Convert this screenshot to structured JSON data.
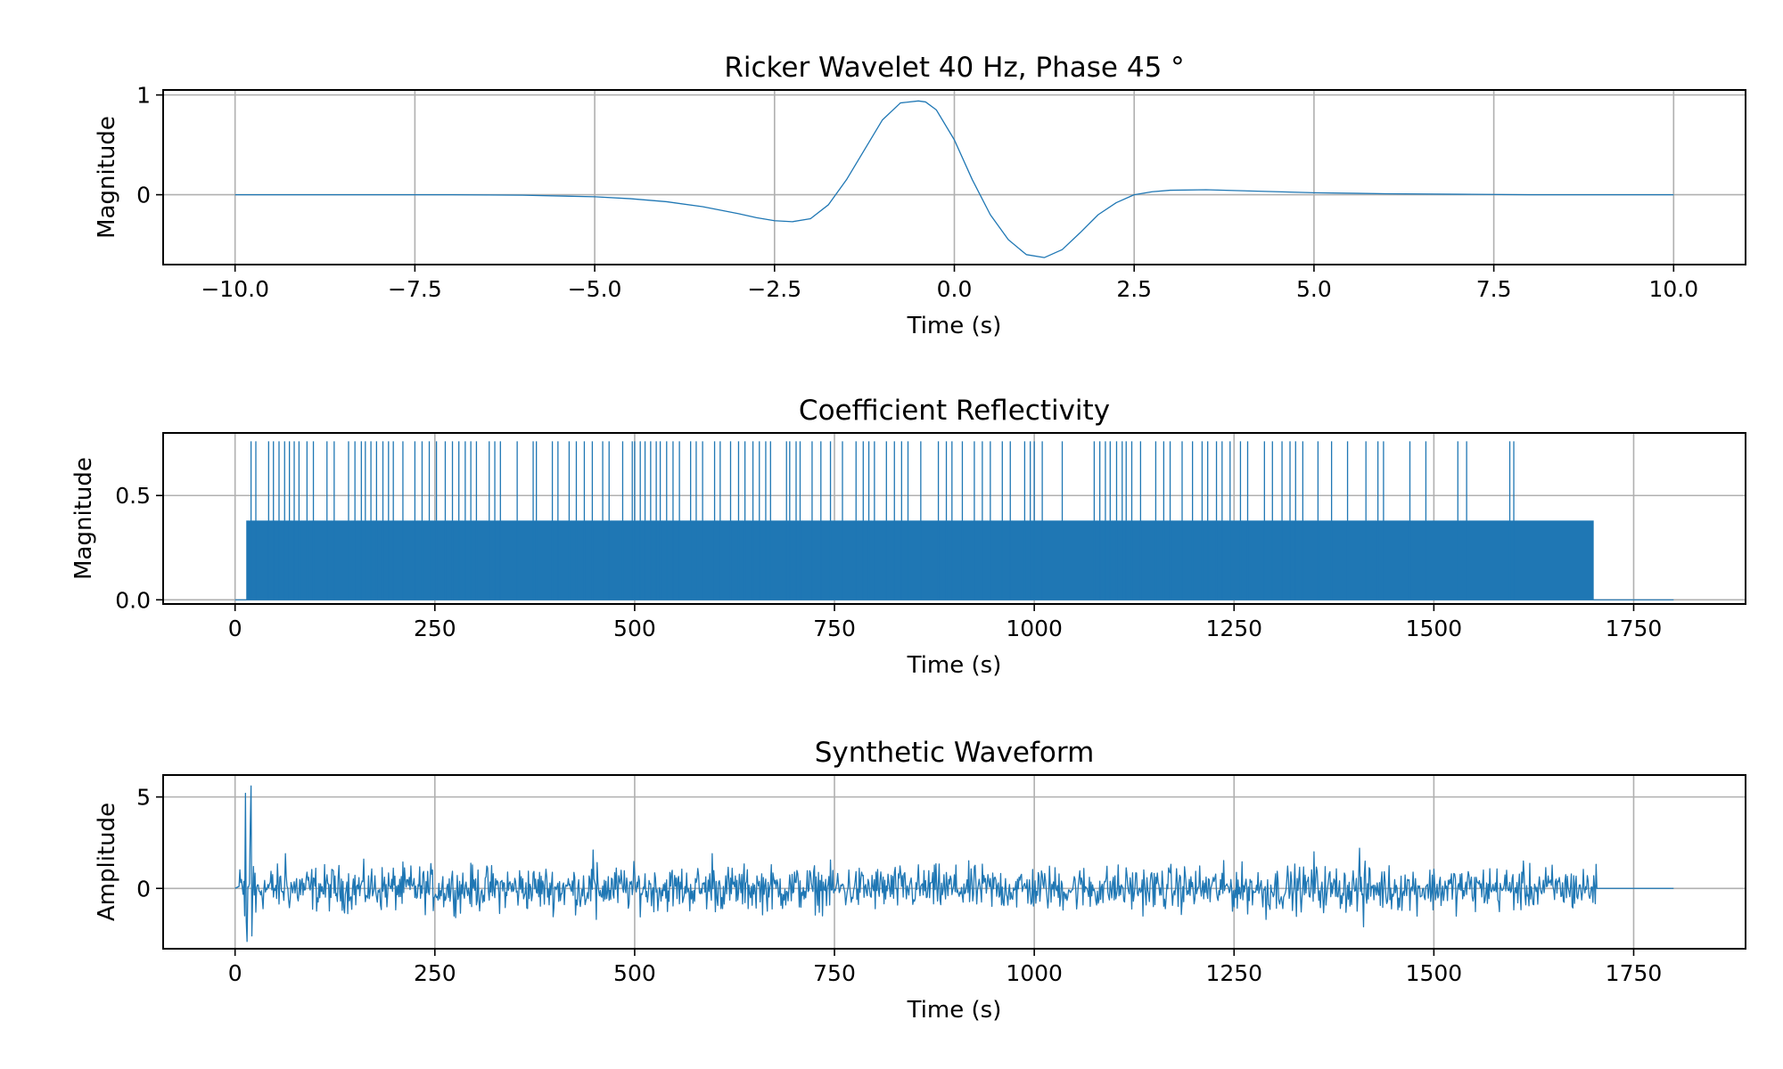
{
  "chart_data": [
    {
      "type": "line",
      "title": "Ricker Wavelet 40 Hz, Phase 45 °",
      "xlabel": "Time (s)",
      "ylabel": "Magnitude",
      "xlim": [
        -11.0,
        11.0
      ],
      "ylim": [
        -0.7,
        1.05
      ],
      "xticks": [
        -10.0,
        -7.5,
        -5.0,
        -2.5,
        0.0,
        2.5,
        5.0,
        7.5,
        10.0
      ],
      "xtick_labels": [
        "−10.0",
        "−7.5",
        "−5.0",
        "−2.5",
        "0.0",
        "2.5",
        "5.0",
        "7.5",
        "10.0"
      ],
      "yticks": [
        0,
        1
      ],
      "ytick_labels": [
        "0",
        "1"
      ],
      "grid": true,
      "series": [
        {
          "color": "#1f77b4",
          "x": [
            -10,
            -9,
            -8,
            -7,
            -6,
            -5,
            -4.5,
            -4,
            -3.5,
            -3,
            -2.75,
            -2.5,
            -2.25,
            -2,
            -1.75,
            -1.5,
            -1.25,
            -1,
            -0.75,
            -0.5,
            -0.4,
            -0.25,
            0,
            0.25,
            0.5,
            0.75,
            1,
            1.25,
            1.5,
            1.75,
            2,
            2.25,
            2.5,
            2.75,
            3,
            3.5,
            4,
            4.5,
            5,
            6,
            7,
            8,
            9,
            10
          ],
          "y": [
            0,
            0,
            0,
            0,
            -0.005,
            -0.02,
            -0.04,
            -0.07,
            -0.12,
            -0.19,
            -0.23,
            -0.26,
            -0.27,
            -0.24,
            -0.1,
            0.15,
            0.45,
            0.75,
            0.92,
            0.94,
            0.93,
            0.85,
            0.55,
            0.15,
            -0.2,
            -0.45,
            -0.6,
            -0.63,
            -0.55,
            -0.38,
            -0.2,
            -0.08,
            0.0,
            0.03,
            0.045,
            0.05,
            0.04,
            0.03,
            0.02,
            0.01,
            0.005,
            0,
            0,
            0
          ]
        }
      ]
    },
    {
      "type": "line",
      "title": "Coefficient Reflectivity",
      "xlabel": "Time (s)",
      "ylabel": "Magnitude",
      "xlim": [
        -90,
        1890
      ],
      "ylim": [
        -0.02,
        0.8
      ],
      "xticks": [
        0,
        250,
        500,
        750,
        1000,
        1250,
        1500,
        1750
      ],
      "xtick_labels": [
        "0",
        "250",
        "500",
        "750",
        "1000",
        "1250",
        "1500",
        "1750"
      ],
      "yticks": [
        0.0,
        0.5
      ],
      "ytick_labels": [
        "0.0",
        "0.5"
      ],
      "grid": true,
      "series": [
        {
          "color": "#1f77b4",
          "start": 0,
          "end": 1800,
          "dense_band": [
            14,
            1700
          ],
          "dense_value": 0.38,
          "spike_value": 0.76,
          "spike_times": [
            20,
            26,
            42,
            48,
            55,
            62,
            68,
            74,
            80,
            90,
            98,
            115,
            124,
            142,
            150,
            158,
            163,
            170,
            177,
            185,
            192,
            198,
            210,
            225,
            234,
            243,
            252,
            263,
            272,
            280,
            288,
            295,
            302,
            318,
            325,
            332,
            353,
            373,
            377,
            397,
            404,
            418,
            427,
            437,
            447,
            460,
            468,
            485,
            497,
            500,
            507,
            513,
            520,
            527,
            532,
            540,
            548,
            556,
            570,
            577,
            585,
            600,
            607,
            620,
            630,
            638,
            648,
            656,
            664,
            670,
            690,
            694,
            702,
            707,
            722,
            733,
            745,
            760,
            777,
            786,
            793,
            800,
            815,
            825,
            834,
            842,
            858,
            880,
            890,
            897,
            910,
            925,
            935,
            945,
            960,
            970,
            988,
            995,
            1000,
            1010,
            1035,
            1075,
            1082,
            1089,
            1095,
            1103,
            1110,
            1115,
            1122,
            1133,
            1152,
            1162,
            1170,
            1185,
            1198,
            1210,
            1217,
            1228,
            1235,
            1245,
            1258,
            1267,
            1288,
            1298,
            1310,
            1320,
            1327,
            1336,
            1355,
            1372,
            1392,
            1415,
            1430,
            1437,
            1470,
            1490,
            1530,
            1541,
            1595,
            1600
          ]
        }
      ]
    },
    {
      "type": "line",
      "title": "Synthetic Waveform",
      "xlabel": "Time (s)",
      "ylabel": "Amplitude",
      "xlim": [
        -90,
        1890
      ],
      "ylim": [
        -3.3,
        6.2
      ],
      "xticks": [
        0,
        250,
        500,
        750,
        1000,
        1250,
        1500,
        1750
      ],
      "xtick_labels": [
        "0",
        "250",
        "500",
        "750",
        "1000",
        "1250",
        "1500",
        "1750"
      ],
      "yticks": [
        0,
        5
      ],
      "ytick_labels": [
        "0",
        "5"
      ],
      "grid": true,
      "series": [
        {
          "color": "#1f77b4",
          "start": 0,
          "active_range": [
            5,
            1703
          ],
          "end": 1800,
          "spikes": [
            {
              "x": 12,
              "y": -1.5
            },
            {
              "x": 13,
              "y": 5.2
            },
            {
              "x": 14,
              "y": -1.8
            },
            {
              "x": 15,
              "y": -2.9
            },
            {
              "x": 19,
              "y": 3.4
            },
            {
              "x": 20,
              "y": 5.6
            },
            {
              "x": 21,
              "y": -2.6
            },
            {
              "x": 23,
              "y": 1.2
            },
            {
              "x": 26,
              "y": -1.3
            }
          ],
          "typical_amplitude": 0.6,
          "peak_values": [
            {
              "x": 63,
              "y": 1.9
            },
            {
              "x": 448,
              "y": 2.1
            },
            {
              "x": 597,
              "y": 1.9
            },
            {
              "x": 1350,
              "y": 2.0
            },
            {
              "x": 1407,
              "y": 2.2
            },
            {
              "x": 1412,
              "y": -2.1
            },
            {
              "x": 452,
              "y": -1.7
            },
            {
              "x": 1290,
              "y": -1.7
            }
          ]
        }
      ]
    }
  ]
}
